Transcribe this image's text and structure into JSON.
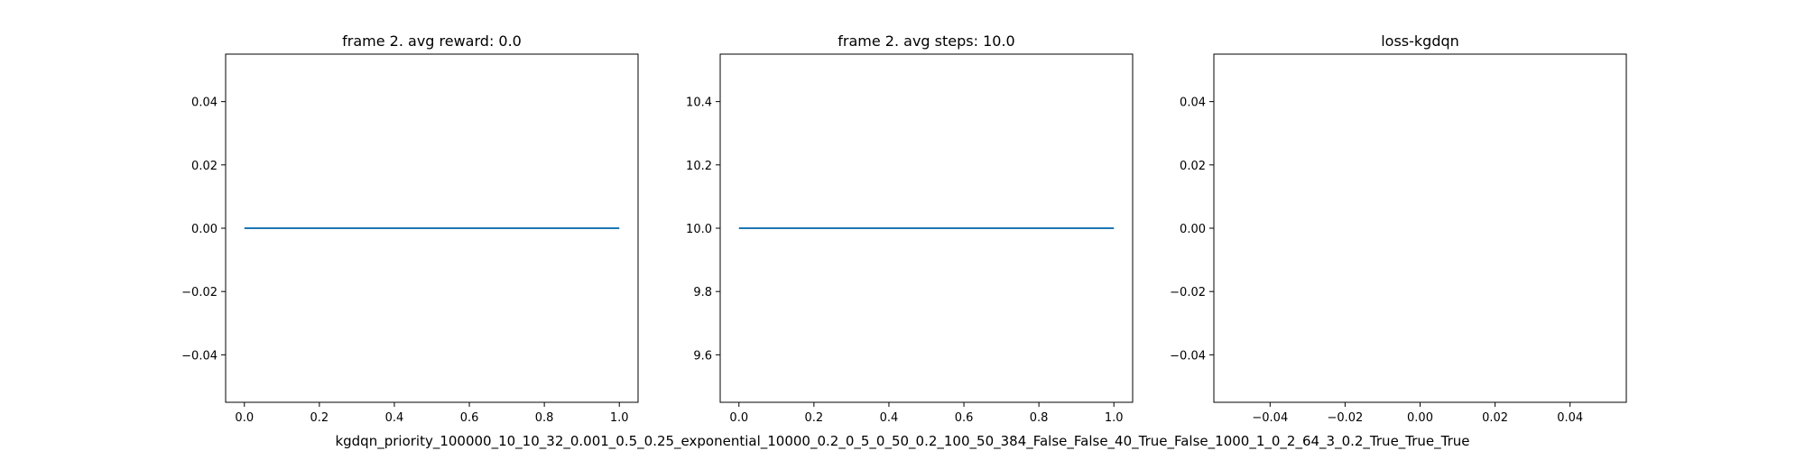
{
  "figure": {
    "caption": "kgdqn_priority_100000_10_10_32_0.001_0.5_0.25_exponential_10000_0.2_0_5_0_50_0.2_100_50_384_False_False_40_True_False_1000_1_0_2_64_3_0.2_True_True_True"
  },
  "colors": {
    "line": "#1f77b4",
    "axes": "#000000",
    "background": "#ffffff"
  },
  "chart_data": [
    {
      "type": "line",
      "title": "frame 2. avg reward: 0.0",
      "xlabel": "",
      "ylabel": "",
      "xlim": [
        -0.05,
        1.05
      ],
      "ylim": [
        -0.055,
        0.055
      ],
      "xticks": [
        0.0,
        0.2,
        0.4,
        0.6,
        0.8,
        1.0
      ],
      "xtick_labels": [
        "0.0",
        "0.2",
        "0.4",
        "0.6",
        "0.8",
        "1.0"
      ],
      "yticks": [
        -0.04,
        -0.02,
        0.0,
        0.02,
        0.04
      ],
      "ytick_labels": [
        "−0.04",
        "−0.02",
        "0.00",
        "0.02",
        "0.04"
      ],
      "grid": false,
      "series": [
        {
          "x": [
            0,
            1
          ],
          "y": [
            0.0,
            0.0
          ]
        }
      ]
    },
    {
      "type": "line",
      "title": "frame 2. avg steps: 10.0",
      "xlabel": "",
      "ylabel": "",
      "xlim": [
        -0.05,
        1.05
      ],
      "ylim": [
        9.45,
        10.55
      ],
      "xticks": [
        0.0,
        0.2,
        0.4,
        0.6,
        0.8,
        1.0
      ],
      "xtick_labels": [
        "0.0",
        "0.2",
        "0.4",
        "0.6",
        "0.8",
        "1.0"
      ],
      "yticks": [
        9.6,
        9.8,
        10.0,
        10.2,
        10.4
      ],
      "ytick_labels": [
        "9.6",
        "9.8",
        "10.0",
        "10.2",
        "10.4"
      ],
      "grid": false,
      "series": [
        {
          "x": [
            0,
            1
          ],
          "y": [
            10.0,
            10.0
          ]
        }
      ]
    },
    {
      "type": "line",
      "title": "loss-kgdqn",
      "xlabel": "",
      "ylabel": "",
      "xlim": [
        -0.055,
        0.055
      ],
      "ylim": [
        -0.055,
        0.055
      ],
      "xticks": [
        -0.04,
        -0.02,
        0.0,
        0.02,
        0.04
      ],
      "xtick_labels": [
        "−0.04",
        "−0.02",
        "0.00",
        "0.02",
        "0.04"
      ],
      "yticks": [
        -0.04,
        -0.02,
        0.0,
        0.02,
        0.04
      ],
      "ytick_labels": [
        "−0.04",
        "−0.02",
        "0.00",
        "0.02",
        "0.04"
      ],
      "grid": false,
      "series": []
    }
  ]
}
